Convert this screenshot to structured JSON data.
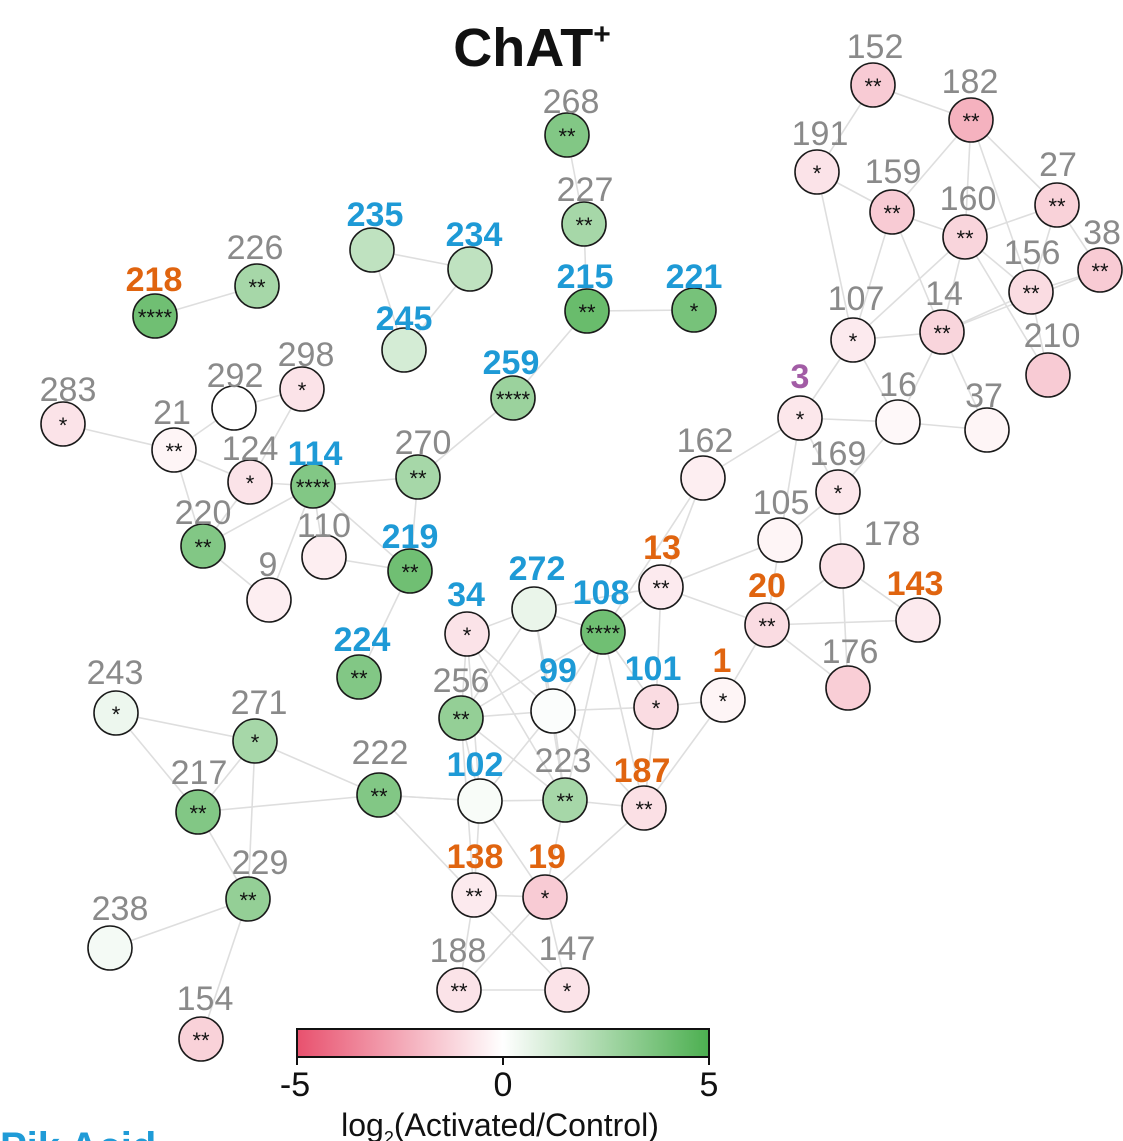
{
  "title": {
    "text": "ChAT",
    "superscript": "+"
  },
  "colors": {
    "gray": "#8a8a8a",
    "blue": "#1e9ad6",
    "orange": "#e0640f",
    "purple": "#a25ca5",
    "edge": "#dedede",
    "negative": "#e8516e",
    "neutral": "#ffffff",
    "positive": "#4caf50"
  },
  "colorbar": {
    "min_label": "-5",
    "mid_label": "0",
    "max_label": "5",
    "label_main": "log",
    "label_sub": "2",
    "label_rest": "(Activated/Control)"
  },
  "cut_text": "Pik Acid",
  "nodes": [
    {
      "id": "152",
      "color": "gray",
      "value": -1.5,
      "stars": "**"
    },
    {
      "id": "182",
      "color": "gray",
      "value": -2.2,
      "stars": "**"
    },
    {
      "id": "191",
      "color": "gray",
      "value": -0.8,
      "stars": "*"
    },
    {
      "id": "159",
      "color": "gray",
      "value": -1.5,
      "stars": "**"
    },
    {
      "id": "27",
      "color": "gray",
      "value": -1.3,
      "stars": "**"
    },
    {
      "id": "160",
      "color": "gray",
      "value": -1.2,
      "stars": "**"
    },
    {
      "id": "38",
      "color": "gray",
      "value": -1.5,
      "stars": "**"
    },
    {
      "id": "156",
      "color": "gray",
      "value": -1.0,
      "stars": "**"
    },
    {
      "id": "107",
      "color": "gray",
      "value": -0.6,
      "stars": "*"
    },
    {
      "id": "14",
      "color": "gray",
      "value": -1.2,
      "stars": "**"
    },
    {
      "id": "210",
      "color": "gray",
      "value": -1.5,
      "stars": ""
    },
    {
      "id": "3",
      "color": "purple",
      "value": -0.7,
      "stars": "*"
    },
    {
      "id": "16",
      "color": "gray",
      "value": -0.2,
      "stars": ""
    },
    {
      "id": "37",
      "color": "gray",
      "value": -0.3,
      "stars": ""
    },
    {
      "id": "162",
      "color": "gray",
      "value": -0.5,
      "stars": ""
    },
    {
      "id": "169",
      "color": "gray",
      "value": -0.7,
      "stars": "*"
    },
    {
      "id": "105",
      "color": "gray",
      "value": -0.3,
      "stars": ""
    },
    {
      "id": "178",
      "color": "gray",
      "value": -0.8,
      "stars": ""
    },
    {
      "id": "143",
      "color": "orange",
      "value": -0.6,
      "stars": ""
    },
    {
      "id": "176",
      "color": "gray",
      "value": -1.4,
      "stars": ""
    },
    {
      "id": "13",
      "color": "orange",
      "value": -0.6,
      "stars": "**"
    },
    {
      "id": "20",
      "color": "orange",
      "value": -1.0,
      "stars": "**"
    },
    {
      "id": "1",
      "color": "orange",
      "value": -0.3,
      "stars": "*"
    },
    {
      "id": "101",
      "color": "blue",
      "value": -1.0,
      "stars": "*"
    },
    {
      "id": "187",
      "color": "orange",
      "value": -0.9,
      "stars": "**"
    },
    {
      "id": "268",
      "color": "gray",
      "value": 3.5,
      "stars": "**"
    },
    {
      "id": "227",
      "color": "gray",
      "value": 2.5,
      "stars": "**"
    },
    {
      "id": "235",
      "color": "blue",
      "value": 1.8,
      "stars": ""
    },
    {
      "id": "234",
      "color": "blue",
      "value": 1.8,
      "stars": ""
    },
    {
      "id": "215",
      "color": "blue",
      "value": 4.2,
      "stars": "**"
    },
    {
      "id": "221",
      "color": "blue",
      "value": 3.8,
      "stars": "*"
    },
    {
      "id": "245",
      "color": "blue",
      "value": 1.2,
      "stars": ""
    },
    {
      "id": "259",
      "color": "blue",
      "value": 2.8,
      "stars": "****"
    },
    {
      "id": "226",
      "color": "gray",
      "value": 2.5,
      "stars": "**"
    },
    {
      "id": "218",
      "color": "orange",
      "value": 4.0,
      "stars": "****"
    },
    {
      "id": "283",
      "color": "gray",
      "value": -0.8,
      "stars": "*"
    },
    {
      "id": "292",
      "color": "gray",
      "value": 0.0,
      "stars": ""
    },
    {
      "id": "298",
      "color": "gray",
      "value": -0.8,
      "stars": "*"
    },
    {
      "id": "21",
      "color": "gray",
      "value": -0.3,
      "stars": "**"
    },
    {
      "id": "124",
      "color": "gray",
      "value": -0.8,
      "stars": "*"
    },
    {
      "id": "114",
      "color": "blue",
      "value": 3.5,
      "stars": "****"
    },
    {
      "id": "270",
      "color": "gray",
      "value": 2.5,
      "stars": "**"
    },
    {
      "id": "220",
      "color": "gray",
      "value": 3.5,
      "stars": "**"
    },
    {
      "id": "110",
      "color": "gray",
      "value": -0.5,
      "stars": ""
    },
    {
      "id": "9",
      "color": "gray",
      "value": -0.5,
      "stars": ""
    },
    {
      "id": "219",
      "color": "blue",
      "value": 4.0,
      "stars": "**"
    },
    {
      "id": "272",
      "color": "blue",
      "value": 0.6,
      "stars": ""
    },
    {
      "id": "34",
      "color": "blue",
      "value": -0.8,
      "stars": "*"
    },
    {
      "id": "108",
      "color": "blue",
      "value": 4.0,
      "stars": "****"
    },
    {
      "id": "224",
      "color": "blue",
      "value": 3.5,
      "stars": "**"
    },
    {
      "id": "243",
      "color": "gray",
      "value": 0.5,
      "stars": "*"
    },
    {
      "id": "271",
      "color": "gray",
      "value": 2.5,
      "stars": "*"
    },
    {
      "id": "256",
      "color": "gray",
      "value": 3.0,
      "stars": "**"
    },
    {
      "id": "99",
      "color": "blue",
      "value": 0.1,
      "stars": ""
    },
    {
      "id": "217",
      "color": "gray",
      "value": 3.5,
      "stars": "**"
    },
    {
      "id": "222",
      "color": "gray",
      "value": 3.5,
      "stars": "**"
    },
    {
      "id": "102",
      "color": "blue",
      "value": 0.2,
      "stars": ""
    },
    {
      "id": "223",
      "color": "gray",
      "value": 2.5,
      "stars": "**"
    },
    {
      "id": "229",
      "color": "gray",
      "value": 3.0,
      "stars": "**"
    },
    {
      "id": "138",
      "color": "orange",
      "value": -0.6,
      "stars": "**"
    },
    {
      "id": "19",
      "color": "orange",
      "value": -1.5,
      "stars": "*"
    },
    {
      "id": "238",
      "color": "gray",
      "value": 0.3,
      "stars": ""
    },
    {
      "id": "188",
      "color": "gray",
      "value": -0.8,
      "stars": "**"
    },
    {
      "id": "147",
      "color": "gray",
      "value": -0.8,
      "stars": "*"
    },
    {
      "id": "154",
      "color": "gray",
      "value": -1.3,
      "stars": "**"
    }
  ],
  "edges": [
    [
      "152",
      "182"
    ],
    [
      "152",
      "191"
    ],
    [
      "182",
      "159"
    ],
    [
      "182",
      "160"
    ],
    [
      "182",
      "27"
    ],
    [
      "182",
      "156"
    ],
    [
      "191",
      "159"
    ],
    [
      "191",
      "107"
    ],
    [
      "159",
      "160"
    ],
    [
      "159",
      "14"
    ],
    [
      "159",
      "107"
    ],
    [
      "27",
      "156"
    ],
    [
      "27",
      "38"
    ],
    [
      "27",
      "160"
    ],
    [
      "160",
      "156"
    ],
    [
      "160",
      "14"
    ],
    [
      "160",
      "107"
    ],
    [
      "160",
      "210"
    ],
    [
      "156",
      "38"
    ],
    [
      "156",
      "14"
    ],
    [
      "156",
      "210"
    ],
    [
      "38",
      "14"
    ],
    [
      "14",
      "107"
    ],
    [
      "14",
      "16"
    ],
    [
      "14",
      "37"
    ],
    [
      "107",
      "3"
    ],
    [
      "107",
      "16"
    ],
    [
      "16",
      "37"
    ],
    [
      "3",
      "16"
    ],
    [
      "3",
      "162"
    ],
    [
      "3",
      "169"
    ],
    [
      "3",
      "105"
    ],
    [
      "16",
      "169"
    ],
    [
      "169",
      "105"
    ],
    [
      "169",
      "178"
    ],
    [
      "105",
      "13"
    ],
    [
      "105",
      "20"
    ],
    [
      "178",
      "143"
    ],
    [
      "178",
      "176"
    ],
    [
      "178",
      "20"
    ],
    [
      "20",
      "143"
    ],
    [
      "20",
      "176"
    ],
    [
      "20",
      "13"
    ],
    [
      "20",
      "1"
    ],
    [
      "13",
      "108"
    ],
    [
      "13",
      "272"
    ],
    [
      "13",
      "101"
    ],
    [
      "162",
      "13"
    ],
    [
      "162",
      "108"
    ],
    [
      "268",
      "227"
    ],
    [
      "227",
      "215"
    ],
    [
      "215",
      "221"
    ],
    [
      "215",
      "259"
    ],
    [
      "235",
      "234"
    ],
    [
      "235",
      "245"
    ],
    [
      "234",
      "245"
    ],
    [
      "259",
      "270"
    ],
    [
      "226",
      "218"
    ],
    [
      "283",
      "21"
    ],
    [
      "21",
      "292"
    ],
    [
      "21",
      "124"
    ],
    [
      "21",
      "220"
    ],
    [
      "292",
      "298"
    ],
    [
      "298",
      "124"
    ],
    [
      "124",
      "114"
    ],
    [
      "124",
      "220"
    ],
    [
      "114",
      "220"
    ],
    [
      "114",
      "270"
    ],
    [
      "114",
      "110"
    ],
    [
      "114",
      "9"
    ],
    [
      "114",
      "219"
    ],
    [
      "110",
      "219"
    ],
    [
      "220",
      "9"
    ],
    [
      "270",
      "219"
    ],
    [
      "219",
      "224"
    ],
    [
      "34",
      "272"
    ],
    [
      "34",
      "256"
    ],
    [
      "34",
      "99"
    ],
    [
      "34",
      "102"
    ],
    [
      "272",
      "108"
    ],
    [
      "272",
      "99"
    ],
    [
      "272",
      "256"
    ],
    [
      "272",
      "223"
    ],
    [
      "108",
      "101"
    ],
    [
      "108",
      "99"
    ],
    [
      "108",
      "187"
    ],
    [
      "108",
      "223"
    ],
    [
      "99",
      "256"
    ],
    [
      "99",
      "102"
    ],
    [
      "99",
      "223"
    ],
    [
      "99",
      "187"
    ],
    [
      "99",
      "101"
    ],
    [
      "101",
      "1"
    ],
    [
      "101",
      "187"
    ],
    [
      "1",
      "187"
    ],
    [
      "256",
      "102"
    ],
    [
      "256",
      "223"
    ],
    [
      "256",
      "138"
    ],
    [
      "102",
      "223"
    ],
    [
      "102",
      "138"
    ],
    [
      "102",
      "19"
    ],
    [
      "102",
      "222"
    ],
    [
      "223",
      "187"
    ],
    [
      "223",
      "19"
    ],
    [
      "187",
      "19"
    ],
    [
      "138",
      "19"
    ],
    [
      "138",
      "188"
    ],
    [
      "138",
      "147"
    ],
    [
      "19",
      "188"
    ],
    [
      "19",
      "147"
    ],
    [
      "188",
      "147"
    ],
    [
      "222",
      "271"
    ],
    [
      "222",
      "217"
    ],
    [
      "222",
      "102"
    ],
    [
      "222",
      "138"
    ],
    [
      "243",
      "271"
    ],
    [
      "243",
      "217"
    ],
    [
      "271",
      "217"
    ],
    [
      "271",
      "229"
    ],
    [
      "217",
      "229"
    ],
    [
      "229",
      "238"
    ],
    [
      "229",
      "154"
    ],
    [
      "256",
      "108"
    ],
    [
      "34",
      "223"
    ]
  ]
}
